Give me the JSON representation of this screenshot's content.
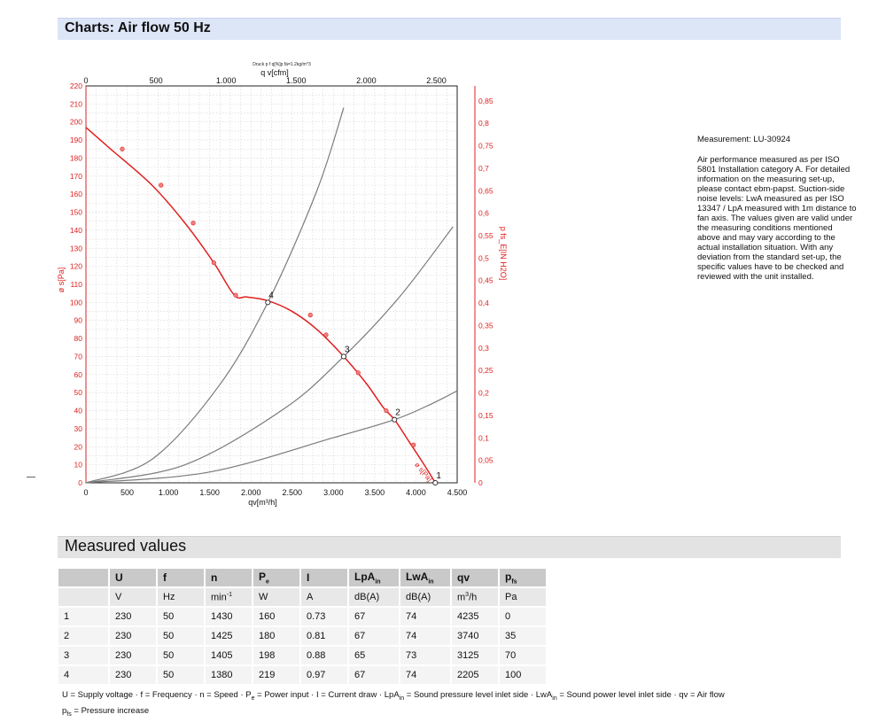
{
  "header": {
    "title": "Charts: Air flow 50 Hz"
  },
  "chart_data": {
    "type": "line",
    "title": "Druck p f q[%]p fä=1.2kg/m^3",
    "xlabel": "qv[m³/h]",
    "x2label": "q v[cfm]",
    "ylabel": "ø s[Pa]",
    "y2label": "p fs_E[IN H2O]",
    "xlim": [
      0,
      4500
    ],
    "ylim": [
      0,
      220
    ],
    "x_ticks": [
      "0",
      "500",
      "1.000",
      "1.500",
      "2.000",
      "2.500",
      "3.000",
      "3.500",
      "4.000",
      "4.500"
    ],
    "y_ticks": [
      "0",
      "10",
      "20",
      "30",
      "40",
      "50",
      "60",
      "70",
      "80",
      "90",
      "100",
      "110",
      "120",
      "130",
      "140",
      "150",
      "160",
      "170",
      "180",
      "190",
      "200",
      "210",
      "220"
    ],
    "x2_ticks": [
      "0",
      "500",
      "1.000",
      "1.500",
      "2.000",
      "2.500"
    ],
    "y2_ticks": [
      "0",
      "0,05",
      "0,1",
      "0,15",
      "0,2",
      "0,25",
      "0,3",
      "0,35",
      "0,4",
      "0,45",
      "0,5",
      "0,55",
      "0,6",
      "0,65",
      "0,7",
      "0,75",
      "0,8",
      "0,85"
    ],
    "curve_label": "ø s[Pa]",
    "grid": true,
    "series": [
      {
        "color": "#e02020",
        "x": [
          0,
          300,
          800,
          1200,
          1550,
          1800,
          1950,
          2200,
          2500,
          2800,
          3125,
          3400,
          3600,
          3740,
          3900,
          4100,
          4235
        ],
        "y": [
          197,
          185,
          165,
          144,
          122,
          104,
          103,
          101,
          95,
          85,
          70,
          55,
          42,
          35,
          24,
          10,
          0
        ]
      }
    ],
    "markers": {
      "x": [
        440,
        910,
        1300,
        1550,
        1815,
        2720,
        2910,
        3300,
        3640,
        3970
      ],
      "y": [
        185,
        165,
        144,
        122,
        104,
        93,
        82,
        61,
        40,
        21
      ]
    },
    "system_curves": [
      {
        "x": [
          0,
          800,
          1600,
          2205,
          2800,
          3125
        ],
        "y": [
          0,
          13,
          53,
          100,
          162,
          208
        ]
      },
      {
        "x": [
          0,
          1200,
          2400,
          3125,
          3800,
          4450
        ],
        "y": [
          0,
          10,
          41,
          70,
          103,
          142
        ]
      },
      {
        "x": [
          0,
          1500,
          3000,
          3740,
          4200,
          4500
        ],
        "y": [
          0,
          6,
          25,
          35,
          44,
          51
        ]
      }
    ],
    "operating_points": [
      {
        "label": "1",
        "x": 4235,
        "y": 0
      },
      {
        "label": "2",
        "x": 3740,
        "y": 35
      },
      {
        "label": "3",
        "x": 3125,
        "y": 70
      },
      {
        "label": "4",
        "x": 2205,
        "y": 100
      }
    ]
  },
  "info": {
    "measurement": "Measurement: LU-30924",
    "description": "Air performance measured as per ISO 5801 Installation category A. For detailed information on the measuring set-up, please contact ebm-papst. Suction-side noise levels: LwA measured as per ISO 13347 / LpA measured with 1m distance to fan axis. The values given are valid under the measuring conditions mentioned above and may vary according to the actual installation situation. With any deviation from the standard set-up, the specific values have to be checked and reviewed with the unit installed."
  },
  "measured": {
    "title": "Measured values",
    "headers": [
      "",
      "U",
      "f",
      "n",
      "P",
      "I",
      "LpA",
      "LwA",
      "qv",
      "p"
    ],
    "header_subs": [
      "",
      "",
      "",
      "",
      "e",
      "",
      "in",
      "in",
      "",
      "fs"
    ],
    "units": [
      "",
      "V",
      "Hz",
      "min",
      "W",
      "A",
      "dB(A)",
      "dB(A)",
      "m",
      "Pa"
    ],
    "unit_sups": [
      "",
      "",
      "",
      "-1",
      "",
      "",
      "",
      "",
      "3",
      ""
    ],
    "unit_suffix": [
      "",
      "",
      "",
      "",
      "",
      "",
      "",
      "",
      "/h",
      ""
    ],
    "rows": [
      [
        "1",
        "230",
        "50",
        "1430",
        "160",
        "0.73",
        "67",
        "74",
        "4235",
        "0"
      ],
      [
        "2",
        "230",
        "50",
        "1425",
        "180",
        "0.81",
        "67",
        "74",
        "3740",
        "35"
      ],
      [
        "3",
        "230",
        "50",
        "1405",
        "198",
        "0.88",
        "65",
        "73",
        "3125",
        "70"
      ],
      [
        "4",
        "230",
        "50",
        "1380",
        "219",
        "0.97",
        "67",
        "74",
        "2205",
        "100"
      ]
    ]
  },
  "footnote": {
    "a": "U = Supply voltage · f = Frequency · n = Speed · P",
    "a_sub": "e",
    "b": " = Power input · I = Current draw · LpA",
    "b_sub": "in",
    "c": " = Sound pressure level inlet side · LwA",
    "c_sub": "in",
    "d": " = Sound power level inlet side · qv = Air flow",
    "e": "p",
    "e_sub": "fs",
    "f": " = Pressure increase"
  }
}
